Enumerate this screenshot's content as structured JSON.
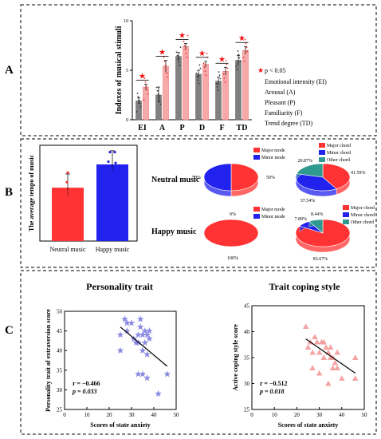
{
  "colors": {
    "grey": "#808080",
    "light_red": "#f7a8a8",
    "red": "#ff3333",
    "blue": "#2222ee",
    "teal": "#2e9a90",
    "star": "#ee1111",
    "star_blue": "#7777dd",
    "triangle": "#f39a9a",
    "black": "#000000"
  },
  "panel_letters": {
    "a": "A",
    "b": "B",
    "c": "C"
  },
  "chart_data": [
    {
      "id": "A",
      "type": "bar",
      "ylabel": "Indexes of musical stimuli",
      "ylim": [
        0,
        10
      ],
      "yticks": [
        0,
        5,
        10
      ],
      "categories": [
        "EI",
        "A",
        "P",
        "D",
        "F",
        "TD"
      ],
      "series": [
        {
          "values": [
            1.9,
            2.5,
            6.4,
            4.6,
            3.9,
            6.0
          ]
        },
        {
          "values": [
            3.3,
            5.4,
            7.4,
            5.6,
            4.9,
            7.0
          ]
        }
      ],
      "errors": [
        [
          0.3,
          0.3
        ],
        [
          0.8,
          0.6
        ],
        [
          0.4,
          0.3
        ],
        [
          0.4,
          0.3
        ],
        [
          0.4,
          0.4
        ],
        [
          0.5,
          0.4
        ]
      ],
      "significance_marker": "★",
      "legend": {
        "star_label": "p < 0.05",
        "entries": [
          "Emotional intensity (EI)",
          "Arousal (A)",
          "Pleasant (P)",
          "Familiarity (F)",
          "Trend degree (TD)"
        ]
      }
    },
    {
      "id": "B-bar",
      "type": "bar",
      "ylabel": "The average tempo of music",
      "categories": [
        "Neutral music",
        "Happy music"
      ],
      "values": [
        78,
        112
      ],
      "ylim": [
        0,
        140
      ]
    },
    {
      "id": "B-pie",
      "type": "pie",
      "row_labels": [
        "Neutral music",
        "Happy music"
      ],
      "mode": {
        "legend": [
          "Major mode",
          "Minor mode"
        ],
        "neutral": [
          {
            "label": "Major mode",
            "value": 50,
            "text": "50%"
          },
          {
            "label": "Minor mode",
            "value": 50,
            "text": "50%"
          }
        ],
        "happy": [
          {
            "label": "Major mode",
            "value": 100,
            "text": "100%"
          },
          {
            "label": "Minor mode",
            "value": 0,
            "text": "0%"
          }
        ]
      },
      "chord": {
        "legend": [
          "Major chord",
          "Minor chord",
          "Other chord"
        ],
        "neutral": [
          {
            "label": "Major chord",
            "value": 41.59,
            "text": "41.59%"
          },
          {
            "label": "Minor chord",
            "value": 37.54,
            "text": "37.54%"
          },
          {
            "label": "Other chord",
            "value": 20.87,
            "text": "20.87%"
          }
        ],
        "happy": [
          {
            "label": "Major chord",
            "value": 83.67,
            "text": "83.67%"
          },
          {
            "label": "Minor chord",
            "value": 7.89,
            "text": "7.89%"
          },
          {
            "label": "Other chord",
            "value": 8.44,
            "text": "8.44%"
          }
        ]
      }
    },
    {
      "id": "C-left",
      "type": "scatter",
      "title": "Personality trait",
      "xlabel": "Scores of state anxiety",
      "ylabel": "Personality trait of extraversion score",
      "xlim": [
        0,
        50
      ],
      "ylim": [
        25,
        50
      ],
      "xticks": [
        0,
        10,
        20,
        30,
        40,
        50
      ],
      "yticks": [
        25,
        30,
        35,
        40,
        45,
        50
      ],
      "points": [
        [
          25,
          40
        ],
        [
          25,
          44
        ],
        [
          27,
          48
        ],
        [
          28,
          47
        ],
        [
          28,
          45
        ],
        [
          30,
          47
        ],
        [
          31,
          43
        ],
        [
          32,
          42
        ],
        [
          33,
          42
        ],
        [
          33,
          44
        ],
        [
          34,
          48
        ],
        [
          34,
          46
        ],
        [
          35,
          44
        ],
        [
          35,
          40
        ],
        [
          36,
          45
        ],
        [
          36,
          42
        ],
        [
          37,
          44
        ],
        [
          37,
          39
        ],
        [
          38,
          43
        ],
        [
          38,
          45
        ],
        [
          33,
          34
        ],
        [
          35,
          34
        ],
        [
          37,
          33
        ],
        [
          42,
          29
        ],
        [
          46,
          34
        ]
      ],
      "trend": [
        [
          25,
          46
        ],
        [
          46,
          36
        ]
      ],
      "stats": {
        "r": "r = −0.466",
        "p": "p = 0.033"
      }
    },
    {
      "id": "C-right",
      "type": "scatter",
      "title": "Trait coping style",
      "xlabel": "Scores of state anxiety",
      "ylabel": "Active coping style score",
      "xlim": [
        0,
        50
      ],
      "ylim": [
        25,
        45
      ],
      "xticks": [
        0,
        10,
        20,
        30,
        40,
        50
      ],
      "yticks": [
        25,
        30,
        35,
        40,
        45
      ],
      "points": [
        [
          24,
          41
        ],
        [
          25,
          37
        ],
        [
          26,
          38
        ],
        [
          27,
          36
        ],
        [
          28,
          39
        ],
        [
          29,
          38
        ],
        [
          30,
          36
        ],
        [
          31,
          38
        ],
        [
          32,
          35
        ],
        [
          32,
          38
        ],
        [
          33,
          37
        ],
        [
          34,
          36
        ],
        [
          35,
          35
        ],
        [
          35,
          37
        ],
        [
          36,
          33
        ],
        [
          36,
          35
        ],
        [
          37,
          34
        ],
        [
          38,
          33
        ],
        [
          38,
          36
        ],
        [
          40,
          31
        ],
        [
          46,
          35
        ],
        [
          46,
          31
        ],
        [
          30,
          32
        ],
        [
          34,
          30
        ],
        [
          27,
          33
        ]
      ],
      "trend": [
        [
          24,
          38.6
        ],
        [
          46,
          32
        ]
      ],
      "stats": {
        "r": "r = −0.512",
        "p": "p = 0.018"
      }
    }
  ]
}
